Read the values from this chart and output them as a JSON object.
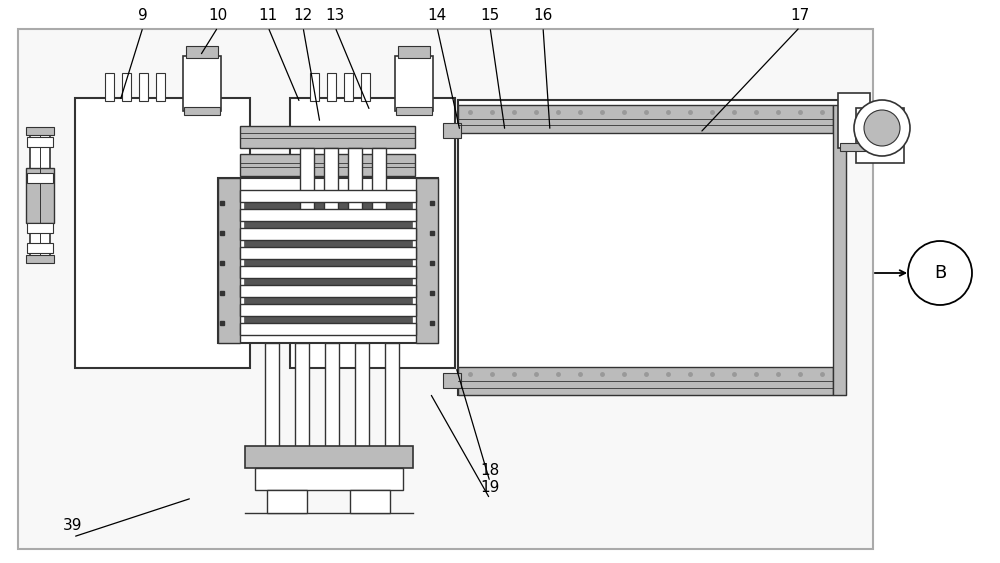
{
  "lc": "#333333",
  "lg": "#bbbbbb",
  "mg": "#999999",
  "dg": "#555555",
  "white": "#ffffff",
  "bg": "#f5f5f5"
}
